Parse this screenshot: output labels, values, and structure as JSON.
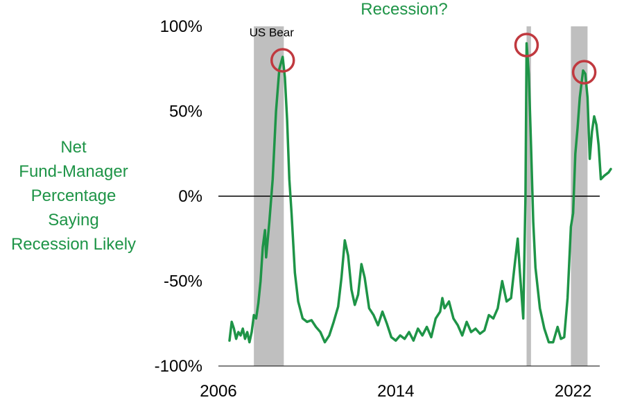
{
  "chart_data": {
    "type": "line",
    "title": "Recession?",
    "ylabel_lines": [
      "Net",
      "Fund-Manager",
      "Percentage",
      "Saying",
      "Recession Likely"
    ],
    "xlabel": "",
    "x_ticks": [
      "2006",
      "2014",
      "2022"
    ],
    "y_ticks": [
      "100%",
      "50%",
      "0%",
      "-50%",
      "-100%"
    ],
    "xlim": [
      2006.0,
      2023.2
    ],
    "ylim": [
      -100,
      100
    ],
    "grid": false,
    "zero_line": true,
    "colors": {
      "series": "#1e9447",
      "title": "#1e9447",
      "ylabel": "#1e9447",
      "shading": "#bfbfbf",
      "circles": "#c0393f",
      "zero_line": "#000000",
      "axis": "#000000"
    },
    "shaded_periods": [
      {
        "start": 2007.6,
        "end": 2008.95
      },
      {
        "start": 2019.9,
        "end": 2020.1
      },
      {
        "start": 2021.9,
        "end": 2022.65
      }
    ],
    "annotations": [
      {
        "text": "US Bear",
        "x": 2008.4,
        "y": 94
      }
    ],
    "highlight_points": [
      {
        "x": 2008.9,
        "y": 80
      },
      {
        "x": 2019.9,
        "y": 89
      },
      {
        "x": 2022.5,
        "y": 73
      }
    ],
    "series": [
      {
        "points": [
          [
            2006.5,
            -85
          ],
          [
            2006.6,
            -74
          ],
          [
            2006.7,
            -78
          ],
          [
            2006.8,
            -84
          ],
          [
            2006.9,
            -80
          ],
          [
            2007.0,
            -82
          ],
          [
            2007.1,
            -78
          ],
          [
            2007.2,
            -84
          ],
          [
            2007.3,
            -80
          ],
          [
            2007.4,
            -86
          ],
          [
            2007.5,
            -80
          ],
          [
            2007.6,
            -70
          ],
          [
            2007.7,
            -72
          ],
          [
            2007.8,
            -63
          ],
          [
            2007.9,
            -50
          ],
          [
            2008.0,
            -30
          ],
          [
            2008.1,
            -20
          ],
          [
            2008.15,
            -36
          ],
          [
            2008.3,
            -15
          ],
          [
            2008.45,
            10
          ],
          [
            2008.6,
            50
          ],
          [
            2008.75,
            75
          ],
          [
            2008.9,
            82
          ],
          [
            2009.0,
            70
          ],
          [
            2009.1,
            45
          ],
          [
            2009.2,
            10
          ],
          [
            2009.3,
            -10
          ],
          [
            2009.45,
            -45
          ],
          [
            2009.6,
            -62
          ],
          [
            2009.8,
            -72
          ],
          [
            2010.0,
            -74
          ],
          [
            2010.2,
            -73
          ],
          [
            2010.4,
            -77
          ],
          [
            2010.6,
            -80
          ],
          [
            2010.8,
            -86
          ],
          [
            2011.0,
            -82
          ],
          [
            2011.2,
            -74
          ],
          [
            2011.4,
            -65
          ],
          [
            2011.55,
            -48
          ],
          [
            2011.7,
            -26
          ],
          [
            2011.85,
            -35
          ],
          [
            2012.0,
            -55
          ],
          [
            2012.15,
            -64
          ],
          [
            2012.3,
            -58
          ],
          [
            2012.45,
            -40
          ],
          [
            2012.6,
            -48
          ],
          [
            2012.8,
            -66
          ],
          [
            2013.0,
            -70
          ],
          [
            2013.2,
            -76
          ],
          [
            2013.4,
            -68
          ],
          [
            2013.6,
            -75
          ],
          [
            2013.8,
            -83
          ],
          [
            2014.0,
            -85
          ],
          [
            2014.2,
            -82
          ],
          [
            2014.4,
            -84
          ],
          [
            2014.6,
            -80
          ],
          [
            2014.8,
            -85
          ],
          [
            2015.0,
            -78
          ],
          [
            2015.2,
            -82
          ],
          [
            2015.4,
            -77
          ],
          [
            2015.6,
            -83
          ],
          [
            2015.8,
            -72
          ],
          [
            2016.0,
            -68
          ],
          [
            2016.1,
            -60
          ],
          [
            2016.2,
            -66
          ],
          [
            2016.4,
            -62
          ],
          [
            2016.6,
            -72
          ],
          [
            2016.8,
            -76
          ],
          [
            2017.0,
            -82
          ],
          [
            2017.2,
            -74
          ],
          [
            2017.4,
            -80
          ],
          [
            2017.6,
            -78
          ],
          [
            2017.8,
            -81
          ],
          [
            2018.0,
            -79
          ],
          [
            2018.2,
            -70
          ],
          [
            2018.4,
            -72
          ],
          [
            2018.6,
            -66
          ],
          [
            2018.8,
            -50
          ],
          [
            2019.0,
            -62
          ],
          [
            2019.2,
            -60
          ],
          [
            2019.35,
            -42
          ],
          [
            2019.5,
            -25
          ],
          [
            2019.6,
            -45
          ],
          [
            2019.75,
            -72
          ],
          [
            2019.85,
            0
          ],
          [
            2019.9,
            90
          ],
          [
            2020.0,
            72
          ],
          [
            2020.1,
            30
          ],
          [
            2020.2,
            -15
          ],
          [
            2020.3,
            -42
          ],
          [
            2020.5,
            -66
          ],
          [
            2020.7,
            -78
          ],
          [
            2020.9,
            -86
          ],
          [
            2021.1,
            -86
          ],
          [
            2021.3,
            -77
          ],
          [
            2021.45,
            -84
          ],
          [
            2021.6,
            -83
          ],
          [
            2021.75,
            -60
          ],
          [
            2021.9,
            -18
          ],
          [
            2022.0,
            -10
          ],
          [
            2022.1,
            25
          ],
          [
            2022.2,
            40
          ],
          [
            2022.3,
            58
          ],
          [
            2022.45,
            74
          ],
          [
            2022.55,
            72
          ],
          [
            2022.65,
            58
          ],
          [
            2022.75,
            22
          ],
          [
            2022.85,
            38
          ],
          [
            2022.95,
            47
          ],
          [
            2023.05,
            42
          ],
          [
            2023.15,
            30
          ],
          [
            2023.25,
            10
          ],
          [
            2023.4,
            12
          ],
          [
            2023.6,
            14
          ],
          [
            2023.7,
            16
          ]
        ]
      }
    ]
  }
}
